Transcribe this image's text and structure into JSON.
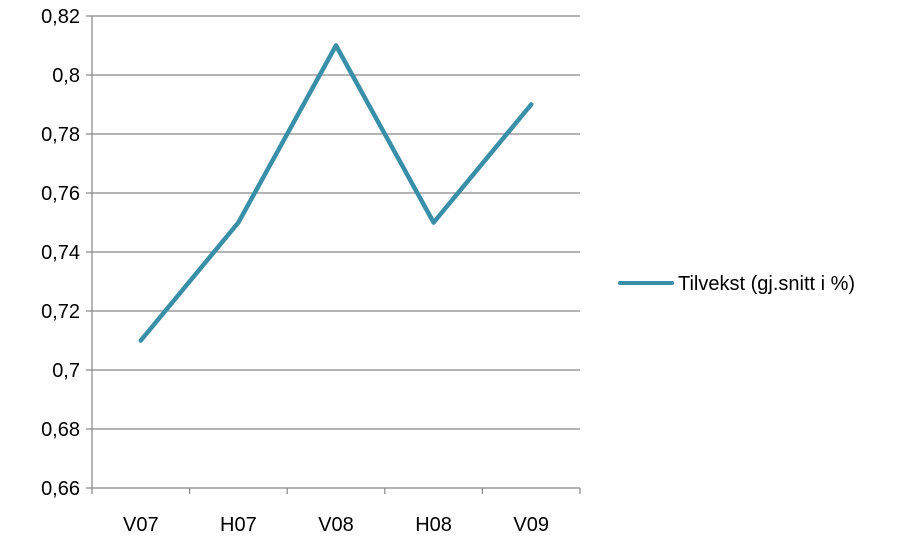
{
  "chart_data": {
    "type": "line",
    "categories": [
      "V07",
      "H07",
      "V08",
      "H08",
      "V09"
    ],
    "series": [
      {
        "name": "Tilvekst (gj.snitt i %)",
        "values": [
          0.71,
          0.75,
          0.81,
          0.75,
          0.79
        ],
        "color": "#3A8FA8"
      }
    ],
    "yticks": [
      "0,66",
      "0,68",
      "0,7",
      "0,72",
      "0,74",
      "0,76",
      "0,78",
      "0,8",
      "0,82"
    ],
    "ylim": [
      0.66,
      0.82
    ],
    "grid": true,
    "legend_position": "right",
    "gridline_color": "#868686",
    "axis_color": "#868686"
  }
}
